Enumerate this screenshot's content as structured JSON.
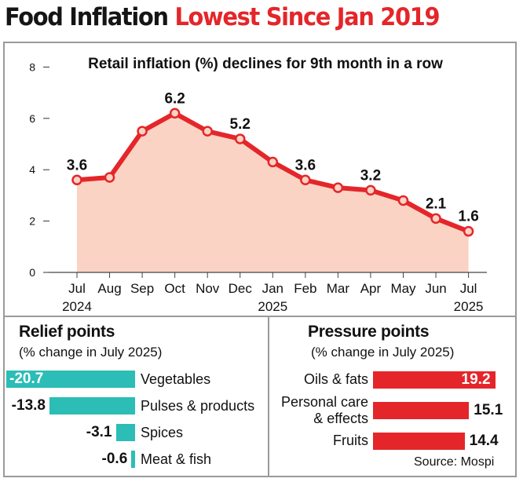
{
  "headline": {
    "part1": "Food Inflation",
    "part2": "Lowest Since Jan 2019"
  },
  "colors": {
    "red": "#e4262a",
    "teal": "#2bbdb6",
    "area_fill": "#fbd3c4"
  },
  "chart_data": {
    "type": "area",
    "title": "Retail inflation (%) declines for 9th month in a row",
    "categories": [
      "Jul",
      "Aug",
      "Sep",
      "Oct",
      "Nov",
      "Dec",
      "Jan",
      "Feb",
      "Mar",
      "Apr",
      "May",
      "Jun",
      "Jul"
    ],
    "year_labels": [
      "2024",
      "",
      "",
      "",
      "",
      "",
      "2025",
      "",
      "",
      "",
      "",
      "",
      "2025"
    ],
    "values": [
      3.6,
      3.7,
      5.5,
      6.2,
      5.5,
      5.2,
      4.3,
      3.6,
      3.3,
      3.2,
      2.8,
      2.1,
      1.6
    ],
    "data_labels": [
      "3.6",
      "",
      "",
      "6.2",
      "",
      "5.2",
      "",
      "3.6",
      "",
      "3.2",
      "",
      "2.1",
      "1.6"
    ],
    "ylim": [
      0,
      8
    ],
    "yticks": [
      "0",
      "2",
      "4",
      "6",
      "8"
    ],
    "xlabel": "",
    "ylabel": ""
  },
  "relief": {
    "title": "Relief points",
    "subtitle": "(% change in July 2025)",
    "items": [
      {
        "label": "Vegetables",
        "value": "-20.7",
        "num": -20.7
      },
      {
        "label": "Pulses & products",
        "value": "-13.8",
        "num": -13.8
      },
      {
        "label": "Spices",
        "value": "-3.1",
        "num": -3.1
      },
      {
        "label": "Meat & fish",
        "value": "-0.6",
        "num": -0.6
      }
    ]
  },
  "pressure": {
    "title": "Pressure points",
    "subtitle": "(% change in July 2025)",
    "items": [
      {
        "label_line1": "Oils & fats",
        "label_line2": "",
        "value": "19.2",
        "num": 19.2
      },
      {
        "label_line1": "Personal care",
        "label_line2": "& effects",
        "value": "15.1",
        "num": 15.1
      },
      {
        "label_line1": "Fruits",
        "label_line2": "",
        "value": "14.4",
        "num": 14.4
      }
    ]
  },
  "source": "Source: Mospi"
}
